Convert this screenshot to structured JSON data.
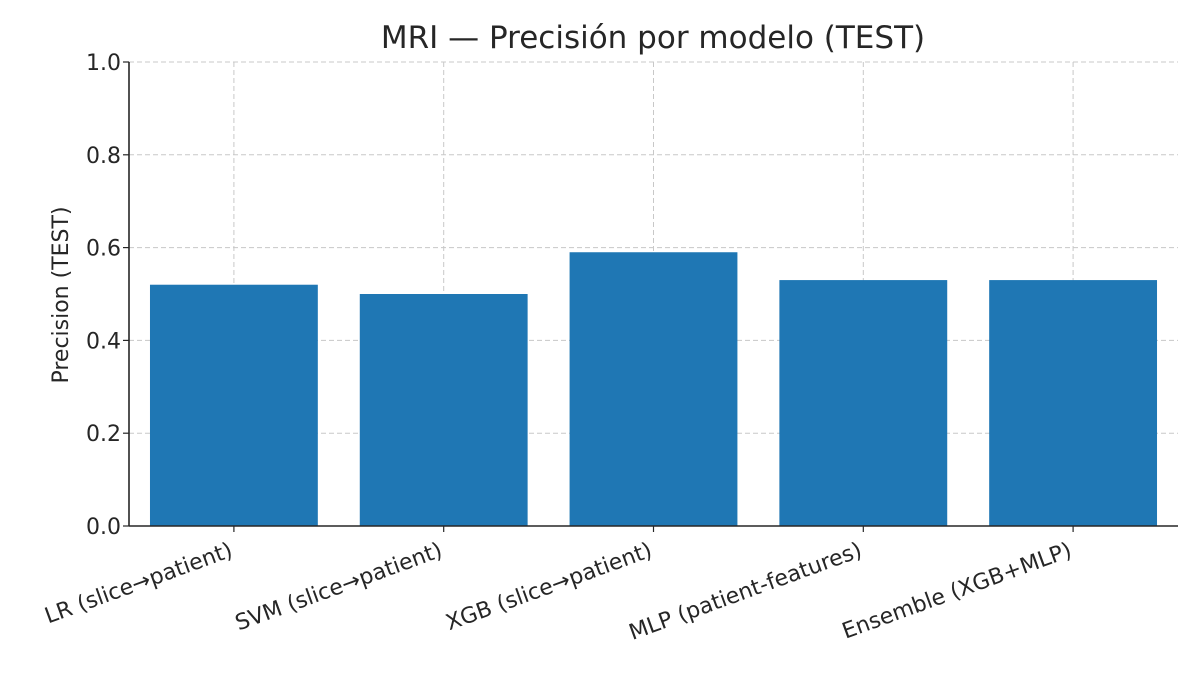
{
  "chart_data": {
    "type": "bar",
    "title": "MRI — Precisión por modelo (TEST)",
    "xlabel": "",
    "ylabel": "Precision (TEST)",
    "categories": [
      "LR (slice→patient)",
      "SVM (slice→patient)",
      "XGB (slice→patient)",
      "MLP (patient-features)",
      "Ensemble (XGB+MLP)"
    ],
    "values": [
      0.52,
      0.5,
      0.59,
      0.53,
      0.53
    ],
    "ylim": [
      0.0,
      1.0
    ],
    "yticks": [
      "0.0",
      "0.2",
      "0.4",
      "0.6",
      "0.8",
      "1.0"
    ],
    "grid": true,
    "bar_color": "#1f77b4"
  }
}
